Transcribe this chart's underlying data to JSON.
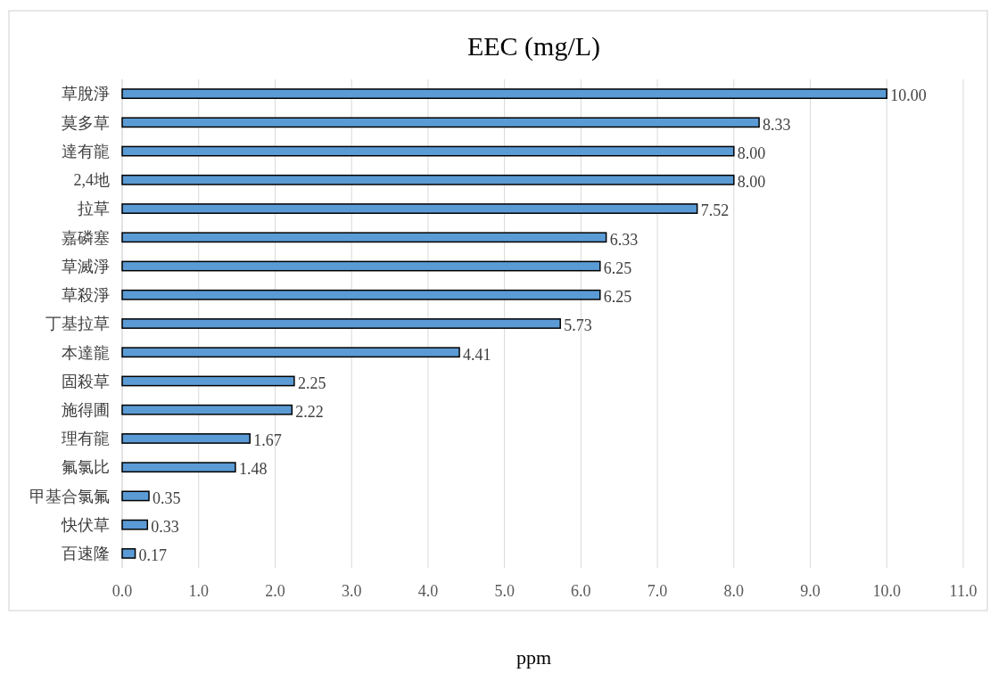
{
  "chart_data": {
    "type": "bar",
    "orientation": "horizontal",
    "title": "EEC (mg/L)",
    "xlabel": "ppm",
    "categories": [
      "草脫淨",
      "莫多草",
      "達有龍",
      "2,4地",
      "拉草",
      "嘉磷塞",
      "草滅淨",
      "草殺淨",
      "丁基拉草",
      "本達龍",
      "固殺草",
      "施得圃",
      "理有龍",
      "氟氯比",
      "甲基合氯氟",
      "快伏草",
      "百速隆"
    ],
    "values": [
      10.0,
      8.33,
      8.0,
      8.0,
      7.52,
      6.33,
      6.25,
      6.25,
      5.73,
      4.41,
      2.25,
      2.22,
      1.67,
      1.48,
      0.35,
      0.33,
      0.17
    ],
    "value_labels": [
      "10.00",
      "8.33",
      "8.00",
      "8.00",
      "7.52",
      "6.33",
      "6.25",
      "6.25",
      "5.73",
      "4.41",
      "2.25",
      "2.22",
      "1.67",
      "1.48",
      "0.35",
      "0.33",
      "0.17"
    ],
    "color": "#5b9bd5",
    "xlim": [
      0,
      11
    ],
    "xticks": [
      {
        "value": 0,
        "label": "0.0"
      },
      {
        "value": 1,
        "label": "1.0"
      },
      {
        "value": 2,
        "label": "2.0"
      },
      {
        "value": 3,
        "label": "3.0"
      },
      {
        "value": 4,
        "label": "4.0"
      },
      {
        "value": 5,
        "label": "5.0"
      },
      {
        "value": 6,
        "label": "6.0"
      },
      {
        "value": 7,
        "label": "7.0"
      },
      {
        "value": 8,
        "label": "8.0"
      },
      {
        "value": 9,
        "label": "9.0"
      },
      {
        "value": 10,
        "label": "10.0"
      },
      {
        "value": 11,
        "label": "11.0"
      }
    ],
    "grid": "x"
  }
}
